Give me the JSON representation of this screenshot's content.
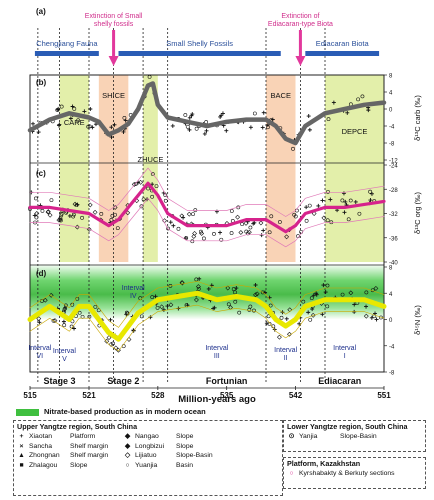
{
  "chart_data": {
    "type": "scatter",
    "xlabel": "Million-years ago",
    "xlim": [
      515,
      551
    ],
    "x_ticks": [
      "515",
      "521",
      "528",
      "535",
      "542",
      "551"
    ],
    "panel_a": {
      "letter": "(a)",
      "events": [
        {
          "label": "Extinction of Small shelly fossils",
          "x": 523.5
        },
        {
          "label": "Extinction of Ediacaran-type Biota",
          "x": 542.5
        }
      ],
      "biotas": [
        {
          "label": "Chengjiang Fauna",
          "range": [
            515.5,
            522
          ]
        },
        {
          "label": "Small Shelly Fossils",
          "range": [
            524,
            540.5
          ]
        },
        {
          "label": "Ediacaran Biota",
          "range": [
            543,
            550.5
          ]
        }
      ]
    },
    "panel_b": {
      "letter": "(b)",
      "ylabel": "δ¹³C carb (‰)",
      "ylim": [
        -12,
        8
      ],
      "yticks": [
        "8",
        "4",
        "0",
        "-4",
        "-8",
        "-12"
      ],
      "zones": [
        {
          "label": "CARE",
          "range": [
            518,
            521
          ],
          "color": "#e3efaa"
        },
        {
          "label": "SHICE",
          "range": [
            522,
            525
          ],
          "color": "#f9d3b6"
        },
        {
          "label": "ZHUCE",
          "range": [
            526.5,
            528
          ],
          "color": "#e3efaa"
        },
        {
          "label": "BACE",
          "range": [
            539,
            542
          ],
          "color": "#f9d3b6"
        },
        {
          "label": "DEPCE",
          "range": [
            545,
            551
          ],
          "color": "#e3efaa"
        }
      ],
      "trend": {
        "x": [
          515,
          517,
          519,
          521,
          522,
          523,
          524,
          525,
          526,
          527,
          527.5,
          528,
          529,
          531,
          533,
          535,
          537,
          539,
          540,
          541,
          542,
          543,
          545,
          547,
          549,
          551
        ],
        "y": [
          -5,
          -2.5,
          -1,
          -2,
          -3,
          -6,
          -5,
          -3.5,
          0,
          5.5,
          6,
          1,
          -2,
          -3,
          -4,
          -3,
          -2.5,
          -2.5,
          -4,
          -7,
          -8,
          -4,
          -1,
          0,
          1,
          1.5
        ]
      }
    },
    "panel_c": {
      "letter": "(c)",
      "ylabel": "δ¹³C org (‰)",
      "ylim": [
        -40,
        -24
      ],
      "yticks": [
        "-24",
        "-28",
        "-32",
        "-36",
        "-40"
      ],
      "trend": {
        "x": [
          515,
          517,
          519,
          521,
          522,
          523,
          524,
          525,
          526,
          527,
          528,
          529,
          531,
          533,
          535,
          537,
          539,
          540,
          541,
          542,
          543,
          545,
          547,
          549,
          551
        ],
        "y": [
          -31,
          -31,
          -31.5,
          -32,
          -33,
          -34,
          -33,
          -31,
          -29,
          -27,
          -29,
          -32,
          -34,
          -34,
          -34,
          -33,
          -33,
          -34,
          -35,
          -34,
          -32,
          -31,
          -31,
          -30.5,
          -30
        ]
      }
    },
    "panel_d": {
      "letter": "(d)",
      "ylabel": "δ¹⁵N (‰)",
      "ylim": [
        -8,
        8
      ],
      "yticks": [
        "8",
        "4",
        "0",
        "-4",
        "-8"
      ],
      "intervals": [
        {
          "label": "Interval VI",
          "x": 516
        },
        {
          "label": "Interval V",
          "x": 518.5
        },
        {
          "label": "Interval IV",
          "x": 525.5
        },
        {
          "label": "Interval III",
          "x": 534
        },
        {
          "label": "Interval II",
          "x": 541
        },
        {
          "label": "Interval I",
          "x": 547
        }
      ],
      "trend": {
        "x": [
          515,
          516,
          517,
          518,
          519,
          520,
          521,
          522,
          523,
          524,
          525,
          526,
          527,
          528,
          530,
          532,
          534,
          536,
          538,
          539,
          540,
          541,
          542,
          543,
          545,
          547,
          549,
          551
        ],
        "y": [
          0,
          1,
          2,
          1,
          0,
          2,
          2,
          0,
          -2,
          -3,
          -1,
          1,
          2,
          3,
          3.5,
          4,
          3,
          3.5,
          3,
          2,
          0,
          -1,
          0,
          2,
          3,
          3,
          3,
          2
        ]
      }
    },
    "stages": [
      {
        "label": "Stage 3",
        "range": [
          515,
          521
        ]
      },
      {
        "label": "Stage 2",
        "range": [
          521,
          528
        ]
      },
      {
        "label": "Fortunian",
        "range": [
          528,
          542
        ]
      },
      {
        "label": "Ediacaran",
        "range": [
          542,
          551
        ]
      }
    ],
    "boundaries": [
      515.8,
      518,
      521,
      523.5,
      526.5,
      529,
      539,
      542.5,
      545
    ]
  },
  "legend": {
    "green_note": "Nitrate-based production as in modern ocean",
    "upper_yangtze": {
      "title": "Upper Yangtze region, South China",
      "rows": [
        [
          {
            "m": "+",
            "name": "Xiaotan",
            "env": "Platform"
          },
          {
            "m": "◆",
            "name": "Nangao",
            "env": "Slope"
          }
        ],
        [
          {
            "m": "×",
            "name": "Sancha",
            "env": "Shelf margin"
          },
          {
            "m": "◆",
            "name": "Longbizui",
            "env": "Slope"
          }
        ],
        [
          {
            "m": "▲",
            "name": "Zhongnan",
            "env": "Shelf margin"
          },
          {
            "m": "◇",
            "name": "Lijiatuo",
            "env": "Slope-Basin"
          }
        ],
        [
          {
            "m": "■",
            "name": "Zhalagou",
            "env": "Slope"
          },
          {
            "m": "○",
            "name": "Yuanjia",
            "env": "Basin"
          }
        ]
      ]
    },
    "lower_yangtze": {
      "title": "Lower Yangtze region, South China",
      "rows": [
        {
          "m": "⊙",
          "name": "Yanjia",
          "env": "Slope-Basin"
        }
      ]
    },
    "kazakhstan": {
      "title": "Platform, Kazakhstan",
      "rows": [
        {
          "m": "○",
          "name": "Kyrshabakty & Berkuty sections"
        }
      ]
    }
  }
}
